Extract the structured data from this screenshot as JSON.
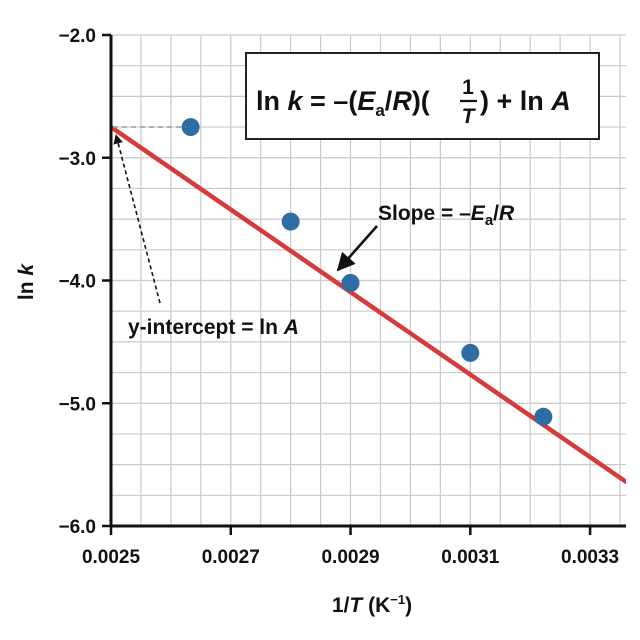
{
  "chart_data": {
    "type": "scatter",
    "xlabel": {
      "prefix": "1/",
      "var": "T",
      "unit": " (K",
      "sup": "−1",
      "close": ")"
    },
    "ylabel": {
      "prefix": "ln ",
      "var": "k"
    },
    "xlim": [
      0.0025,
      0.00336
    ],
    "ylim": [
      -6.0,
      -2.0
    ],
    "x_ticks": [
      0.0025,
      0.0027,
      0.0029,
      0.0031,
      0.0033
    ],
    "x_tick_labels": [
      "0.0025",
      "0.0027",
      "0.0029",
      "0.0031",
      "0.0033"
    ],
    "y_ticks": [
      -2.0,
      -3.0,
      -4.0,
      -5.0,
      -6.0
    ],
    "y_tick_labels": [
      "−2.0",
      "−3.0",
      "−4.0",
      "−5.0",
      "−6.0"
    ],
    "grid": true,
    "series": [
      {
        "type": "scatter",
        "color": "#2e6da4",
        "points": [
          {
            "x": 0.002633,
            "y": -2.75
          },
          {
            "x": 0.0028,
            "y": -3.52
          },
          {
            "x": 0.0029,
            "y": -4.02
          },
          {
            "x": 0.0031,
            "y": -4.59
          },
          {
            "x": 0.003222,
            "y": -5.11
          }
        ]
      },
      {
        "type": "line",
        "color": "#d63a3a",
        "points": [
          {
            "x": 0.0025,
            "y": -2.75
          },
          {
            "x": 0.00336,
            "y": -5.64
          }
        ]
      }
    ],
    "annotations": {
      "equation": {
        "lhs": "ln ",
        "k_var": "k",
        "equals": " = –(",
        "e_var": "E",
        "e_sub": "a",
        "slash": "/",
        "r_var": "R",
        "close": ")(",
        "frac_num": "1",
        "frac_den": "T",
        "tail": ") + ln ",
        "a_var": "A"
      },
      "slope": {
        "text": "Slope = –",
        "e_var": "E",
        "e_sub": "a",
        "slash": "/",
        "r_var": "R"
      },
      "intercept": {
        "text": "y-intercept = ln ",
        "a_var": "A"
      }
    }
  }
}
